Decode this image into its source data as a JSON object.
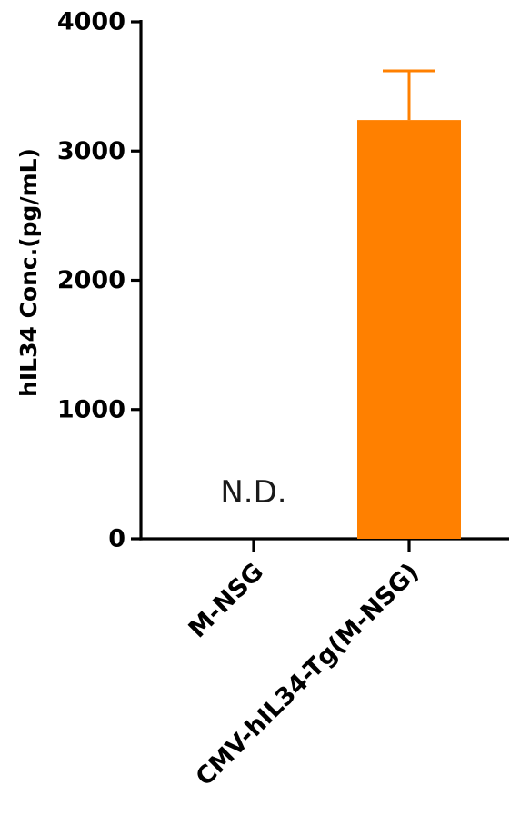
{
  "chart_data": {
    "type": "bar",
    "title": "",
    "xlabel": "",
    "ylabel": "hIL34 Conc.(pg/mL)",
    "ylim": [
      0,
      4000
    ],
    "yticks": [
      0,
      1000,
      2000,
      3000,
      4000
    ],
    "categories": [
      "M-NSG",
      "CMV-hIL34-Tg(M-NSG)"
    ],
    "values": [
      0,
      3240
    ],
    "error_upper": [
      null,
      3620
    ],
    "annotations": [
      {
        "category": "M-NSG",
        "text": "N.D."
      }
    ],
    "bar_color": "#ff8000",
    "error_color": "#ff8000",
    "grid": false,
    "legend": "none"
  }
}
